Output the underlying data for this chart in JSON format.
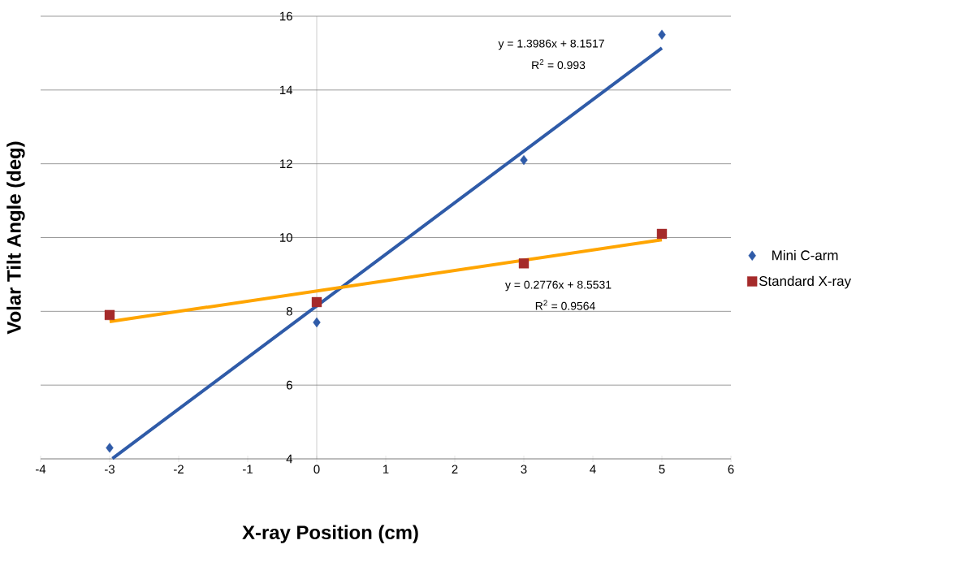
{
  "chart_data": {
    "type": "scatter",
    "xlabel": "X-ray Position (cm)",
    "ylabel": "Volar Tilt Angle (deg)",
    "series": [
      {
        "name": "Mini C-arm",
        "marker": "diamond",
        "color": "#2f5ba8",
        "x": [
          -3,
          0,
          3,
          5
        ],
        "values": [
          4.3,
          7.7,
          12.1,
          15.5
        ]
      },
      {
        "name": "Standard X-ray",
        "marker": "square",
        "color": "#a52a2a",
        "x": [
          -3,
          0,
          3,
          5
        ],
        "values": [
          7.9,
          8.25,
          9.3,
          10.1
        ]
      },
      {
        "type": "line",
        "marker": "none",
        "color": "#2f5ba8",
        "x": [
          -2.96,
          5
        ],
        "values": [
          4.01,
          15.14
        ]
      },
      {
        "type": "line",
        "marker": "none",
        "color": "#ffa500",
        "x": [
          -3,
          5
        ],
        "values": [
          7.72,
          9.94
        ]
      }
    ],
    "xlim": [
      -4,
      6
    ],
    "xticks": [
      -4,
      -3,
      -2,
      -1,
      0,
      1,
      2,
      3,
      4,
      5,
      6
    ],
    "ylim": [
      4,
      16
    ],
    "yticks": [
      4,
      6,
      8,
      10,
      12,
      14,
      16
    ],
    "grid": "y",
    "legend": "right",
    "annotations": [
      "y = 1.3986x + 8.1517",
      "R$^{2}$ = 0.993",
      "y = 0.2776x + 8.5531",
      "R$^{2}$ = 0.9564"
    ]
  }
}
